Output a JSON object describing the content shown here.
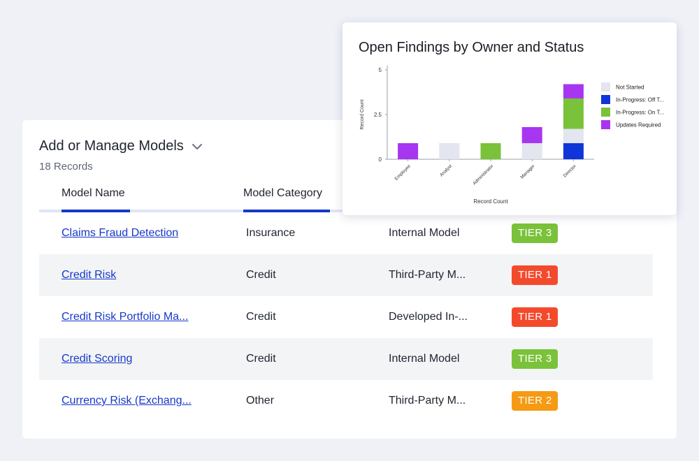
{
  "models": {
    "title": "Add or Manage Models",
    "record_count": "18 Records",
    "columns": [
      "Model Name",
      "Model Category"
    ],
    "rows": [
      {
        "name": "Claims Fraud Detection",
        "category": "Insurance",
        "source": "Internal Model",
        "tier": "TIER 3",
        "tier_color": "#7ac23a"
      },
      {
        "name": "Credit Risk",
        "category": "Credit",
        "source": "Third-Party M...",
        "tier": "TIER 1",
        "tier_color": "#f44a2c"
      },
      {
        "name": "Credit Risk Portfolio Ma...",
        "category": "Credit",
        "source": "Developed In-...",
        "tier": "TIER 1",
        "tier_color": "#f44a2c"
      },
      {
        "name": "Credit Scoring",
        "category": "Credit",
        "source": "Internal Model",
        "tier": "TIER 3",
        "tier_color": "#7ac23a"
      },
      {
        "name": "Currency Risk (Exchang...",
        "category": "Other",
        "source": "Third-Party M...",
        "tier": "TIER 2",
        "tier_color": "#f59a12"
      }
    ]
  },
  "colors": {
    "link": "#1638c9",
    "accent_underline": "#1638c9",
    "alt_row": "#f3f4f6"
  },
  "icons": {
    "dropdown": "chevron-down-icon"
  },
  "chart_data": {
    "type": "bar",
    "stacked": true,
    "title": "Open Findings by Owner and Status",
    "xlabel": "Record Count",
    "ylabel": "Record Count",
    "ylim": [
      0,
      5
    ],
    "yticks": [
      0,
      2.5,
      5
    ],
    "ytick_labels": [
      "0",
      "2.5",
      "5"
    ],
    "categories": [
      "Employee",
      "Analyst",
      "Administrator",
      "Manager",
      "Director"
    ],
    "series": [
      {
        "name": "In-Progress: Off T...",
        "color": "#0f35d8",
        "values": [
          0,
          0,
          0,
          0,
          0.9
        ]
      },
      {
        "name": "Not Started",
        "color": "#e3e5ef",
        "values": [
          0,
          0.9,
          0,
          0.9,
          0.8
        ]
      },
      {
        "name": "In-Progress: On T...",
        "color": "#7ac23a",
        "values": [
          0,
          0,
          0.9,
          0,
          1.7
        ]
      },
      {
        "name": "Updates Required",
        "color": "#a736f0",
        "values": [
          0.9,
          0,
          0,
          0.9,
          0.8
        ]
      }
    ],
    "legend_order": [
      "Not Started",
      "In-Progress: Off T...",
      "In-Progress: On T...",
      "Updates Required"
    ],
    "legend_position": "right",
    "grid": false
  }
}
